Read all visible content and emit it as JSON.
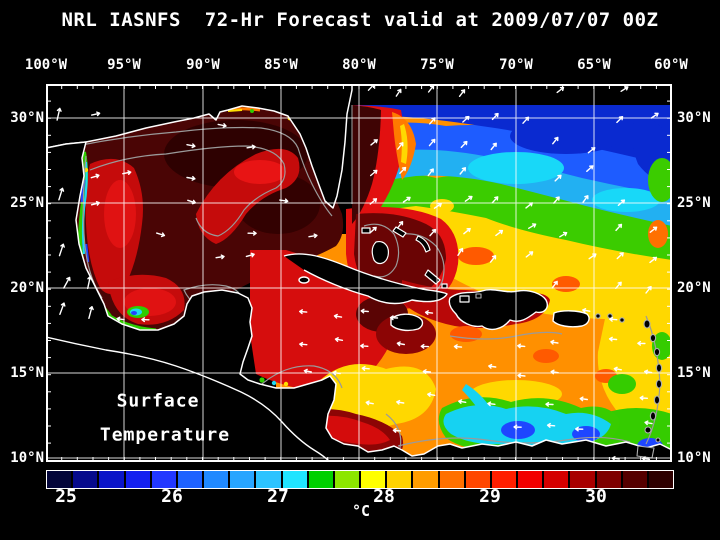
{
  "title": "NRL IASNFS  72-Hr Forecast valid at 2009/07/07 00Z",
  "map": {
    "overlay_line1": "Surface",
    "overlay_line2": "Temperature",
    "axes": {
      "top_labels": [
        "100°W",
        "95°W",
        "90°W",
        "85°W",
        "80°W",
        "75°W",
        "70°W",
        "65°W",
        "60°W"
      ],
      "left_labels": [
        "30°N",
        "25°N",
        "20°N",
        "15°N",
        "10°N"
      ],
      "right_labels": [
        "30°N",
        "25°N",
        "20°N",
        "15°N",
        "10°N"
      ]
    }
  },
  "colorbar": {
    "unit": "°C",
    "tick_labels": [
      "25",
      "26",
      "27",
      "28",
      "29",
      "30"
    ],
    "segment_colors": [
      "#03053a",
      "#060a8c",
      "#0a14c8",
      "#1420f0",
      "#2238ff",
      "#1e62ff",
      "#2089ff",
      "#28a5ff",
      "#2cc3ff",
      "#20e4ff",
      "#00d000",
      "#8ce600",
      "#ffff00",
      "#ffd200",
      "#ff9c00",
      "#ff7000",
      "#ff4700",
      "#ff1e00",
      "#f20000",
      "#d40000",
      "#a80000",
      "#7e0000",
      "#550000",
      "#2e0000"
    ]
  },
  "colors": {
    "background": "#000000",
    "text": "#ffffff",
    "grid": "#ffffff",
    "coastline": "#ffffff",
    "contour": "#9a9a9a",
    "land": "#000000"
  }
}
